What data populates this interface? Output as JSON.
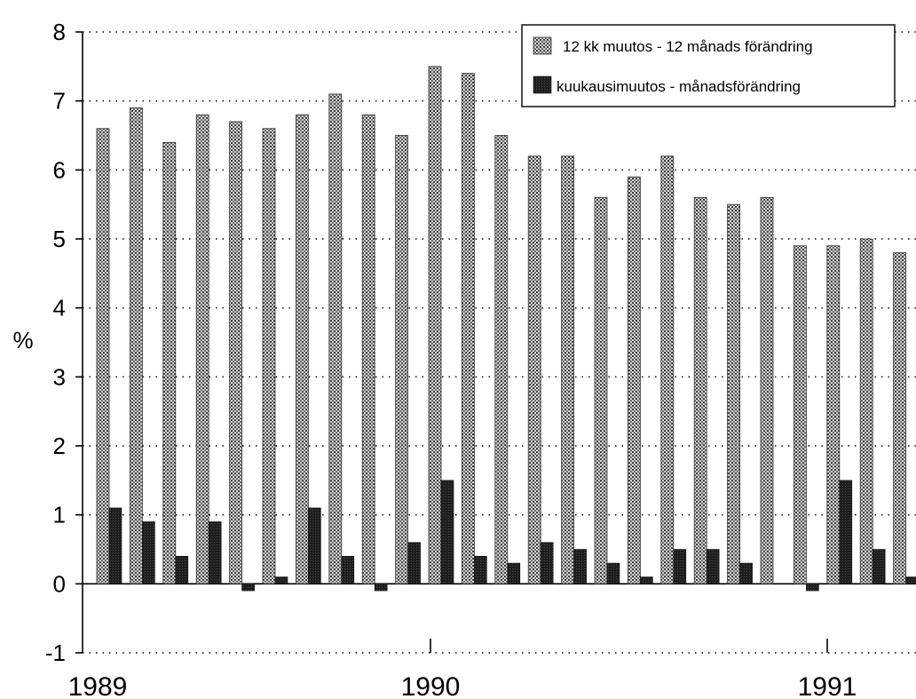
{
  "chart_data": {
    "type": "bar",
    "ylabel": "%",
    "ylim": [
      -1,
      8
    ],
    "yticks": [
      "-1",
      "0",
      "1",
      "2",
      "3",
      "4",
      "5",
      "6",
      "7",
      "8"
    ],
    "grid": true,
    "legend_position": "top-right",
    "x_year_labels": [
      {
        "label": "1989",
        "month_index": 0
      },
      {
        "label": "1990",
        "month_index": 12
      },
      {
        "label": "1991",
        "month_index": 24
      }
    ],
    "months": 27,
    "series": [
      {
        "name": "12 kk muutos - 12 månads förändring",
        "color": "#8c8c8c",
        "values": [
          6.6,
          6.9,
          6.4,
          6.8,
          6.7,
          6.6,
          6.8,
          7.1,
          6.8,
          6.5,
          7.5,
          7.4,
          6.5,
          6.2,
          6.2,
          5.6,
          5.9,
          6.2,
          5.6,
          5.5,
          5.6,
          4.9,
          4.9,
          5.0,
          4.8
        ]
      },
      {
        "name": "kuukausimuutos - månadsförändring",
        "color": "#2a2a2a",
        "values": [
          1.1,
          0.9,
          0.4,
          0.9,
          -0.1,
          0.1,
          1.1,
          0.4,
          -0.1,
          0.6,
          1.5,
          0.4,
          0.3,
          0.6,
          0.5,
          0.3,
          0.1,
          0.5,
          0.5,
          0.3,
          null,
          -0.1,
          1.5,
          0.5,
          0.1
        ]
      }
    ]
  }
}
